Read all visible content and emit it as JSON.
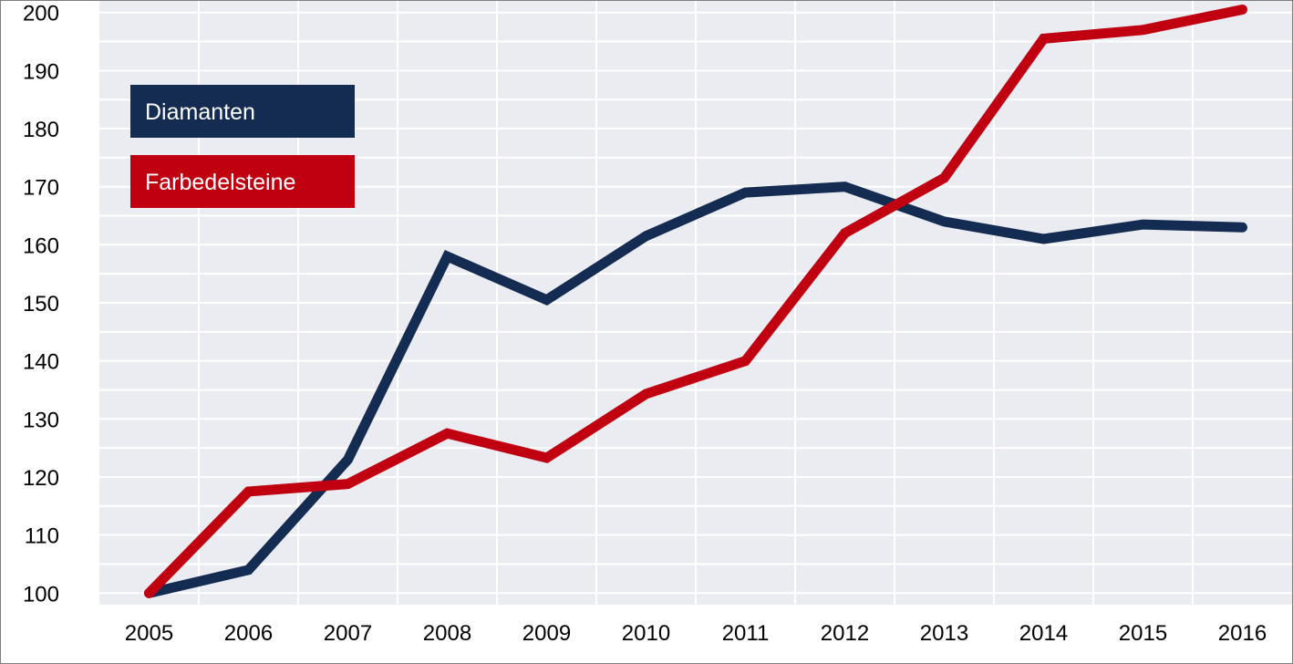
{
  "chart_data": {
    "type": "line",
    "title": "",
    "xlabel": "",
    "ylabel": "",
    "x": [
      "2005",
      "2006",
      "2007",
      "2008",
      "2009",
      "2010",
      "2011",
      "2012",
      "2013",
      "2014",
      "2015",
      "2016"
    ],
    "ylim": [
      98,
      202
    ],
    "yticks": [
      "100",
      "110",
      "120",
      "130",
      "140",
      "150",
      "160",
      "170",
      "180",
      "190",
      "200"
    ],
    "grid": true,
    "legend_position": "top-left",
    "series": [
      {
        "name": "Diamanten",
        "color": "#142b52",
        "values": [
          100,
          104,
          123,
          158,
          150.5,
          161.5,
          169,
          170,
          164,
          161,
          163.5,
          163
        ]
      },
      {
        "name": "Farbedelsteine",
        "color": "#c00010",
        "values": [
          100,
          117.5,
          118.8,
          127.5,
          123.3,
          134.3,
          140,
          162,
          171.5,
          195.5,
          197,
          200.5
        ]
      }
    ]
  },
  "colors": {
    "plot_background": "#ebecf2",
    "grid": "#ffffff"
  }
}
